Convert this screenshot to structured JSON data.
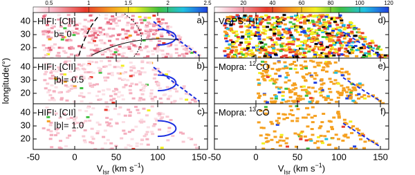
{
  "chart_data": [
    {
      "type": "heatmap",
      "panel": "a)",
      "title": [
        {
          "text": "HIFI: [CII]"
        }
      ],
      "subtitle": "b= 0",
      "xlim": [
        -50,
        160
      ],
      "xticks": [
        -50,
        0,
        50,
        100,
        150
      ],
      "ylim": [
        12,
        47
      ],
      "yticks": [
        20,
        30,
        40
      ],
      "colorbar": {
        "lim": [
          0.3,
          2.5
        ],
        "ticks": [
          0.5,
          1,
          1.5,
          2,
          2.5
        ]
      }
    },
    {
      "type": "heatmap",
      "panel": "b)",
      "title": [
        {
          "text": "HIFI: [CII]"
        }
      ],
      "subtitle": "|b|= 0.5",
      "xlim": [
        -50,
        160
      ],
      "xticks": [
        -50,
        0,
        50,
        100,
        150
      ],
      "ylim": [
        12,
        47
      ],
      "yticks": [
        20,
        30,
        40
      ],
      "ylabel": "longitude(°)"
    },
    {
      "type": "heatmap",
      "panel": "c)",
      "title": [
        {
          "text": "HIFI: [CII]"
        }
      ],
      "subtitle": "|b|= 1.0",
      "xlim": [
        -50,
        160
      ],
      "xticks": [
        -50,
        0,
        50,
        100,
        150
      ],
      "ylim": [
        12,
        47
      ],
      "yticks": [
        20,
        30,
        40
      ],
      "xlabel": [
        {
          "text": "V"
        },
        {
          "text": "lsr",
          "sub": true
        },
        {
          "text": " (km s"
        },
        {
          "text": "−1",
          "sup": true
        },
        {
          "text": ")"
        }
      ]
    },
    {
      "type": "heatmap",
      "panel": "d)",
      "title": [
        {
          "text": "VGPS: HI"
        }
      ],
      "xlim": [
        -50,
        160
      ],
      "xticks": [
        -50,
        0,
        50,
        100,
        150
      ],
      "ylim": [
        12,
        47
      ],
      "yticks": [
        20,
        30,
        40
      ],
      "colorbar": {
        "lim": [
          0,
          120
        ],
        "ticks": [
          20,
          40,
          60,
          80,
          100,
          120
        ]
      }
    },
    {
      "type": "heatmap",
      "panel": "e)",
      "title": [
        {
          "text": "Mopra: "
        },
        {
          "text": "12",
          "sup": true
        },
        {
          "text": "CO"
        }
      ],
      "xlim": [
        -50,
        160
      ],
      "xticks": [
        -50,
        0,
        50,
        100,
        150
      ],
      "ylim": [
        12,
        47
      ],
      "yticks": [
        20,
        30,
        40
      ]
    },
    {
      "type": "heatmap",
      "panel": "f)",
      "title": [
        {
          "text": "Mopra: "
        },
        {
          "text": "13",
          "sup": true
        },
        {
          "text": "CO"
        }
      ],
      "xlim": [
        -50,
        160
      ],
      "xticks": [
        -50,
        0,
        50,
        100,
        150
      ],
      "ylim": [
        12,
        47
      ],
      "yticks": [
        20,
        30,
        40
      ],
      "xlabel": [
        {
          "text": "V"
        },
        {
          "text": "lsr",
          "sub": true
        },
        {
          "text": " (km s"
        },
        {
          "text": "−1",
          "sup": true
        },
        {
          "text": ")"
        }
      ]
    }
  ]
}
